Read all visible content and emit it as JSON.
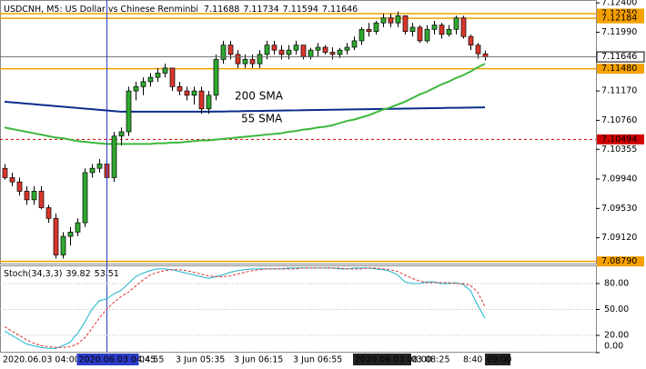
{
  "chart_data": [
    {
      "type": "candlestick",
      "symbol": "USDCNH, M5:  US Dollar vs Chinese Renminbi",
      "up_color": "#2fa82f",
      "down_color": "#d9362b",
      "ylim": [
        7.0876,
        7.1244
      ],
      "yticks": [
        {
          "value": 7.124,
          "label": "7.12400"
        },
        {
          "value": 7.1199,
          "label": "7.11990"
        },
        {
          "value": 7.1117,
          "label": "7.11170"
        },
        {
          "value": 7.1076,
          "label": "7.10760"
        },
        {
          "value": 7.10355,
          "label": "7.10355"
        },
        {
          "value": 7.0994,
          "label": "7.09940"
        },
        {
          "value": 7.0953,
          "label": "7.09530"
        },
        {
          "value": 7.0912,
          "label": "7.09120"
        }
      ],
      "ohlc": [
        [
          7.1009,
          7.1015,
          7.0993,
          7.0996
        ],
        [
          7.0996,
          7.1003,
          7.0984,
          7.099
        ],
        [
          7.099,
          7.0996,
          7.0971,
          7.0977
        ],
        [
          7.0977,
          7.0984,
          7.0958,
          7.0965
        ],
        [
          7.0965,
          7.0984,
          7.0958,
          7.0977
        ],
        [
          7.0977,
          7.0984,
          7.0952,
          7.0954
        ],
        [
          7.0954,
          7.0958,
          7.0933,
          7.0939
        ],
        [
          7.0939,
          7.0946,
          7.0883,
          7.0888
        ],
        [
          7.0888,
          7.092,
          7.0883,
          7.0914
        ],
        [
          7.0914,
          7.0927,
          7.0901,
          7.092
        ],
        [
          7.092,
          7.0939,
          7.0914,
          7.0933
        ],
        [
          7.0933,
          7.1009,
          7.0927,
          7.1003
        ],
        [
          7.1003,
          7.1015,
          7.0996,
          7.1009
        ],
        [
          7.1009,
          7.1022,
          7.1003,
          7.1015
        ],
        [
          7.1015,
          7.1022,
          7.099,
          7.0996
        ],
        [
          7.0996,
          7.106,
          7.099,
          7.1054
        ],
        [
          7.1054,
          7.1066,
          7.1041,
          7.106
        ],
        [
          7.106,
          7.1123,
          7.1054,
          7.1117
        ],
        [
          7.1117,
          7.113,
          7.1104,
          7.1123
        ],
        [
          7.1123,
          7.1136,
          7.1111,
          7.113
        ],
        [
          7.113,
          7.1142,
          7.1123,
          7.1136
        ],
        [
          7.1136,
          7.1149,
          7.113,
          7.1142
        ],
        [
          7.1142,
          7.1155,
          7.1136,
          7.1149
        ],
        [
          7.1149,
          7.1149,
          7.1117,
          7.1123
        ],
        [
          7.1123,
          7.113,
          7.1111,
          7.1117
        ],
        [
          7.1117,
          7.1123,
          7.1104,
          7.1111
        ],
        [
          7.1111,
          7.1123,
          7.1098,
          7.1117
        ],
        [
          7.1117,
          7.1123,
          7.1085,
          7.1092
        ],
        [
          7.1092,
          7.1117,
          7.1085,
          7.1111
        ],
        [
          7.1111,
          7.1168,
          7.1104,
          7.1161
        ],
        [
          7.1161,
          7.1187,
          7.1155,
          7.1181
        ],
        [
          7.1181,
          7.1187,
          7.1161,
          7.1168
        ],
        [
          7.1168,
          7.1174,
          7.1149,
          7.1155
        ],
        [
          7.1155,
          7.1168,
          7.1149,
          7.1161
        ],
        [
          7.1161,
          7.1168,
          7.1149,
          7.1155
        ],
        [
          7.1155,
          7.1174,
          7.1149,
          7.1168
        ],
        [
          7.1168,
          7.1187,
          7.1161,
          7.1181
        ],
        [
          7.1181,
          7.1187,
          7.1168,
          7.1174
        ],
        [
          7.1174,
          7.1181,
          7.1161,
          7.1168
        ],
        [
          7.1168,
          7.1181,
          7.1161,
          7.1174
        ],
        [
          7.1174,
          7.1187,
          7.1168,
          7.1181
        ],
        [
          7.1181,
          7.1181,
          7.1161,
          7.1165
        ],
        [
          7.1165,
          7.1177,
          7.1161,
          7.1174
        ],
        [
          7.1174,
          7.1184,
          7.1165,
          7.1178
        ],
        [
          7.1178,
          7.1181,
          7.1168,
          7.1171
        ],
        [
          7.1171,
          7.1178,
          7.1161,
          7.1168
        ],
        [
          7.1168,
          7.1177,
          7.1163,
          7.1174
        ],
        [
          7.1174,
          7.1184,
          7.1168,
          7.1178
        ],
        [
          7.1178,
          7.1193,
          7.1174,
          7.1187
        ],
        [
          7.1187,
          7.1206,
          7.1181,
          7.1203
        ],
        [
          7.1203,
          7.1212,
          7.1193,
          7.12
        ],
        [
          7.12,
          7.1215,
          7.1196,
          7.1212
        ],
        [
          7.1212,
          7.1225,
          7.1206,
          7.1219
        ],
        [
          7.1219,
          7.1225,
          7.1206,
          7.1212
        ],
        [
          7.1212,
          7.1228,
          7.1206,
          7.1222
        ],
        [
          7.1222,
          7.1222,
          7.1196,
          7.12
        ],
        [
          7.12,
          7.1212,
          7.1193,
          7.1206
        ],
        [
          7.1206,
          7.1209,
          7.1184,
          7.1187
        ],
        [
          7.1187,
          7.1209,
          7.1184,
          7.1203
        ],
        [
          7.1203,
          7.1215,
          7.1196,
          7.1209
        ],
        [
          7.1209,
          7.1212,
          7.119,
          7.1196
        ],
        [
          7.1196,
          7.1209,
          7.1193,
          7.1203
        ],
        [
          7.1203,
          7.1222,
          7.1196,
          7.1219
        ],
        [
          7.1219,
          7.1222,
          7.119,
          7.1193
        ],
        [
          7.1193,
          7.1196,
          7.1174,
          7.1181
        ],
        [
          7.1181,
          7.1184,
          7.1162,
          7.1169
        ],
        [
          7.11688,
          7.11734,
          7.11594,
          7.11646
        ]
      ],
      "series": [
        {
          "name": "200 SMA",
          "color": "#0a2d8c",
          "values": [
            7.1102,
            7.11011,
            7.11003,
            7.10994,
            7.10985,
            7.10976,
            7.10968,
            7.10959,
            7.1095,
            7.10941,
            7.10933,
            7.10924,
            7.10915,
            7.10906,
            7.10898,
            7.10889,
            7.1088,
            7.1088,
            7.1088,
            7.1088,
            7.1088,
            7.1088,
            7.1088,
            7.1088,
            7.1088,
            7.1088,
            7.1088,
            7.1088,
            7.1088,
            7.10882,
            7.10883,
            7.10885,
            7.10886,
            7.10888,
            7.1089,
            7.10891,
            7.10893,
            7.10895,
            7.10896,
            7.10898,
            7.10899,
            7.10901,
            7.10903,
            7.10904,
            7.10906,
            7.10908,
            7.10909,
            7.10911,
            7.10912,
            7.10914,
            7.10916,
            7.10917,
            7.10919,
            7.10921,
            7.10922,
            7.10924,
            7.10925,
            7.10927,
            7.10929,
            7.1093,
            7.10932,
            7.10934,
            7.10935,
            7.10937,
            7.10938,
            7.1094,
            7.10941
          ]
        },
        {
          "name": "55 SMA",
          "color": "#3cb83c",
          "values": [
            7.1066,
            7.1064,
            7.1062,
            7.106,
            7.1058,
            7.1056,
            7.1054,
            7.1052,
            7.1051,
            7.1049,
            7.1047,
            7.1046,
            7.1045,
            7.1044,
            7.1043,
            7.1043,
            7.1043,
            7.1043,
            7.1043,
            7.1043,
            7.1043,
            7.1044,
            7.1044,
            7.1045,
            7.1045,
            7.1046,
            7.1047,
            7.1048,
            7.1048,
            7.1049,
            7.105,
            7.1051,
            7.1052,
            7.1053,
            7.1054,
            7.1055,
            7.1056,
            7.1057,
            7.1058,
            7.106,
            7.1061,
            7.1063,
            7.1064,
            7.1066,
            7.1067,
            7.1069,
            7.1072,
            7.1075,
            7.1077,
            7.108,
            7.1083,
            7.1087,
            7.1091,
            7.1094,
            7.1098,
            7.1102,
            7.1107,
            7.1112,
            7.1116,
            7.1121,
            7.1126,
            7.113,
            7.1135,
            7.1139,
            7.1144,
            7.115,
            7.1155
          ]
        }
      ],
      "levels": [
        {
          "value": 7.1225,
          "label": "7.12250",
          "color": "#f5a000"
        },
        {
          "value": 7.12184,
          "color": "#f5a000"
        },
        {
          "value": 7.1148,
          "label": "7.11480",
          "color": "#f5a000"
        },
        {
          "value": 7.0879,
          "label": "7.08790",
          "color": "#f5a000"
        },
        {
          "value": 7.10494,
          "color": "#d00000",
          "dashed": true
        }
      ],
      "crosshair": "2020.06.03 04:45",
      "time_labels": [
        "2020.06.03 04:00",
        "04:55",
        "3 Jun 05:35",
        "3 Jun 06:15",
        "3 Jun 06:55",
        "03 08:25",
        "8:40"
      ],
      "marked_times": [
        "2020.06.03 08:00",
        "09:00"
      ]
    },
    {
      "type": "line",
      "title": "Stoch(34,3,3)",
      "ylim": [
        0,
        100
      ],
      "yticks": [
        {
          "value": 80,
          "label": "80.00"
        },
        {
          "value": 50,
          "label": "50.00"
        },
        {
          "value": 20,
          "label": "20.00"
        },
        {
          "value": 0,
          "label": "0.00"
        }
      ],
      "grid": true,
      "series": [
        {
          "color": "#19b3cc",
          "values": [
            25,
            20,
            15,
            10,
            8,
            6,
            5,
            5,
            8,
            12,
            22,
            35,
            50,
            60,
            62,
            68,
            72,
            80,
            88,
            92,
            95,
            97,
            97,
            96,
            94,
            92,
            90,
            88,
            86,
            88,
            90,
            93,
            95,
            96,
            97,
            97,
            97,
            97,
            97,
            98,
            98,
            98,
            98,
            98,
            98,
            98,
            97,
            97,
            98,
            98,
            98,
            97,
            96,
            94,
            90,
            82,
            80,
            80,
            82,
            82,
            80,
            80,
            81,
            79,
            72,
            55,
            39.82
          ]
        },
        {
          "color": "#e03030",
          "dashed": true,
          "values": [
            30,
            25,
            20,
            15,
            11,
            8,
            7,
            6,
            6,
            7,
            10,
            17,
            28,
            40,
            50,
            58,
            65,
            70,
            77,
            84,
            90,
            93,
            95,
            96,
            96,
            95,
            93,
            91,
            89,
            88,
            88,
            89,
            91,
            93,
            95,
            96,
            97,
            97,
            97,
            97,
            97,
            98,
            98,
            98,
            98,
            98,
            98,
            97,
            97,
            97,
            98,
            98,
            97,
            96,
            94,
            90,
            86,
            83,
            81,
            81,
            81,
            81,
            80,
            80,
            78,
            70,
            53.51
          ]
        }
      ]
    }
  ]
}
